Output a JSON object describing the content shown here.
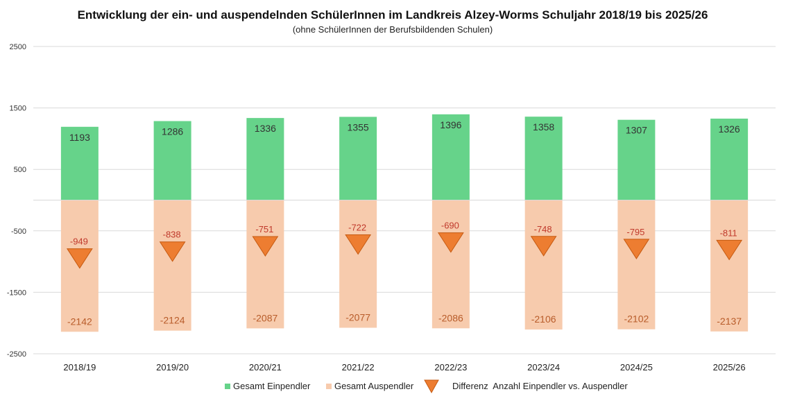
{
  "chart_data": {
    "type": "bar",
    "title": "Entwicklung der ein- und auspendelnden SchülerInnen im Landkreis Alzey-Worms Schuljahr 2018/19 bis 2025/26",
    "subtitle": "(ohne SchülerInnen der Berufsbildenden Schulen)",
    "categories": [
      "2018/19",
      "2019/20",
      "2020/21",
      "2021/22",
      "2022/23",
      "2023/24",
      "2024/25",
      "2025/26"
    ],
    "series": [
      {
        "name": "Gesamt Einpendler",
        "values": [
          1193,
          1286,
          1336,
          1355,
          1396,
          1358,
          1307,
          1326
        ],
        "color": "#66d38a"
      },
      {
        "name": "Gesamt Auspendler",
        "values": [
          -2142,
          -2124,
          -2087,
          -2077,
          -2086,
          -2106,
          -2102,
          -2137
        ],
        "color": "#f7cbad"
      },
      {
        "name": "Differenz  Anzahl Einpendler vs. Auspendler",
        "values": [
          -949,
          -838,
          -751,
          -722,
          -690,
          -748,
          -795,
          -811
        ],
        "color": "#ed7d31",
        "marker": "triangle-down"
      }
    ],
    "y_ticks": [
      2500,
      1500,
      500,
      -500,
      -1500,
      -2500
    ],
    "ylim": [
      -2500,
      2500
    ],
    "grid": true,
    "legend_position": "bottom"
  }
}
